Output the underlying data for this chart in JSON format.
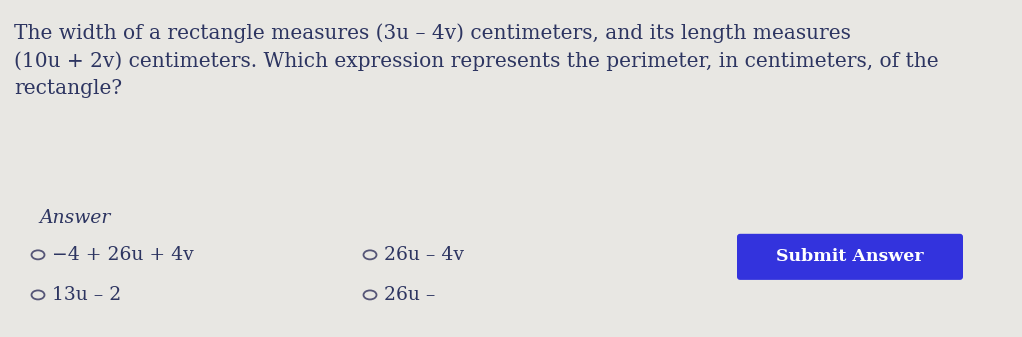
{
  "bg_top": "#e8e7e3",
  "bg_bottom": "#d8d7d2",
  "text_color": "#2d3561",
  "answer_label": "Answer",
  "submit_text": "Submit Answer",
  "submit_bg": "#3333dd",
  "submit_text_color": "#ffffff",
  "font_size_question": 14.5,
  "font_size_answer_label": 13.5,
  "font_size_options": 13.5,
  "font_size_submit": 12.5,
  "line1": "The width of a rectangle measures (3u – 4v) centimeters, and its length measures",
  "line2": "(10u + 2v) centimeters. Which expression represents the perimeter, in centimeters, of the",
  "line3": "rectangle?",
  "opt1": "−4 + 26u + 4v",
  "opt2": "26u – 4v",
  "opt3": "13u – 2",
  "opt4": "26u –",
  "radio_color": "#555577"
}
